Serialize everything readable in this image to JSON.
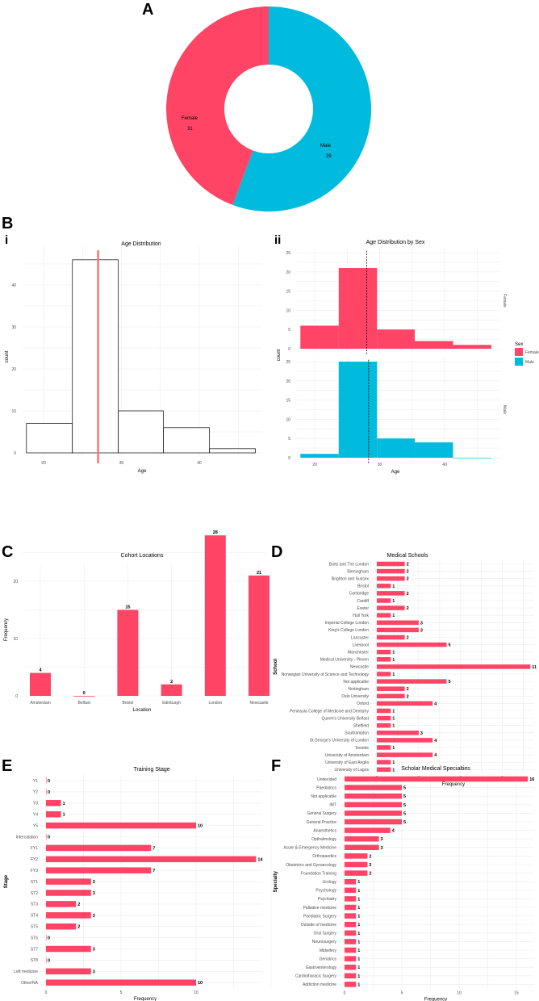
{
  "colors": {
    "female": "#FF4466",
    "male": "#00BBDD",
    "bar": "#FF4466",
    "mean_line": "#F8766D"
  },
  "panels": {
    "A": "A",
    "B": "B",
    "Bi": "i",
    "Bii": "ii",
    "C": "C",
    "D": "D",
    "E": "E",
    "F": "F"
  },
  "chart_data": [
    {
      "id": "sex",
      "type": "pie",
      "title": "Sex",
      "categories": [
        "Female",
        "Male"
      ],
      "values": [
        31,
        39
      ],
      "donut": true
    },
    {
      "id": "age",
      "type": "bar",
      "subtype": "histogram",
      "title": "Age Distribution",
      "xlabel": "Age",
      "ylabel": "count",
      "bin_edges": [
        17.8,
        23.7,
        29.6,
        35.4,
        41.3,
        47.2
      ],
      "values": [
        7,
        46,
        10,
        6,
        1
      ],
      "mean": 27,
      "xticks": [
        20,
        30,
        40
      ],
      "yticks": [
        0,
        10,
        20,
        30,
        40
      ],
      "ylim": [
        0,
        46
      ]
    },
    {
      "id": "age_sex",
      "type": "bar",
      "subtype": "faceted histogram",
      "title": "Age Distribution by Sex",
      "xlabel": "Age",
      "ylabel": "count",
      "legend_title": "Sex",
      "legend": "right",
      "bin_edges": [
        17.8,
        23.7,
        29.6,
        35.4,
        41.3,
        47.2
      ],
      "series": [
        {
          "name": "Female",
          "values": [
            6,
            21,
            5,
            2,
            1
          ],
          "mean": 28
        },
        {
          "name": "Male",
          "values": [
            1,
            25,
            5,
            4,
            0
          ],
          "mean": 28.3
        }
      ],
      "xticks": [
        20,
        30,
        40
      ],
      "yticks": [
        0,
        5,
        10,
        15,
        20,
        25
      ],
      "ylim": [
        0,
        25
      ]
    },
    {
      "id": "locations",
      "type": "bar",
      "title": "Cohort Locations",
      "xlabel": "Location",
      "ylabel": "Frequency",
      "categories": [
        "Amsterdam",
        "Belfast",
        "Bristol",
        "Edinburgh",
        "London",
        "Newcastle"
      ],
      "values": [
        4,
        0,
        15,
        2,
        28,
        21
      ],
      "yticks": [
        0,
        10,
        20
      ],
      "ylim": [
        0,
        28
      ]
    },
    {
      "id": "schools",
      "type": "bar",
      "orientation": "horizontal",
      "title": "Medical Schools",
      "xlabel": "Frequency",
      "ylabel": "School",
      "categories": [
        "Barts and The London",
        "Birmingham",
        "Brighton and Sussex",
        "Bristol",
        "Cambridge",
        "Cardiff",
        "Exeter",
        "Hull York",
        "Imperial College London",
        "King's College London",
        "Lancaster",
        "Liverpool",
        "Manchester",
        "Medical University - Pleven",
        "Newcastle",
        "Norwegian University of Science and Technology",
        "Not applicable",
        "Nottingham",
        "Oslo University",
        "Oxford",
        "Peninsula College of Medicine and Dentistry",
        "Queen's University Belfast",
        "Sheffield",
        "Southampton",
        "St George's University of London",
        "Teeside",
        "University of Amsterdam",
        "University of East Anglia",
        "University of Lagos"
      ],
      "values": [
        2,
        2,
        2,
        1,
        2,
        1,
        2,
        1,
        3,
        3,
        2,
        5,
        1,
        1,
        11,
        1,
        5,
        2,
        2,
        4,
        1,
        1,
        1,
        3,
        4,
        1,
        4,
        1,
        1
      ],
      "xticks": [
        0,
        3,
        6,
        9
      ],
      "xlim": [
        0,
        11
      ]
    },
    {
      "id": "stage",
      "type": "bar",
      "orientation": "horizontal",
      "title": "Training Stage",
      "xlabel": "Frequency",
      "ylabel": "Stage",
      "categories": [
        "Y1",
        "Y2",
        "Y3",
        "Y4",
        "Y5",
        "Intercalation",
        "FY1",
        "FY2",
        "FY3",
        "ST1",
        "ST2",
        "ST3",
        "ST4",
        "ST5",
        "ST6",
        "ST7",
        "ST8",
        "Left medicine",
        "Other/NA"
      ],
      "values": [
        0,
        0,
        1,
        1,
        10,
        0,
        7,
        14,
        7,
        3,
        3,
        2,
        3,
        2,
        0,
        3,
        0,
        3,
        10
      ],
      "xticks": [
        0,
        5,
        10
      ],
      "xlim": [
        0,
        14
      ]
    },
    {
      "id": "specialty",
      "type": "bar",
      "orientation": "horizontal",
      "title": "Scholar Medical Specialties",
      "xlabel": "Frequency",
      "ylabel": "Specialty",
      "categories": [
        "Undecided",
        "Paediatrics",
        "Not applicable",
        "IMT",
        "General Surgery",
        "General Practice",
        "Anaesthetics",
        "Opthalmology",
        "Acute & Emergency Medicine",
        "Orthopaedics",
        "Obstetrics and Gynaecology",
        "Foundation Training",
        "Urology",
        "Psychology",
        "Psychiatry",
        "Palliative medicine",
        "Paediatric Surgery",
        "Outside of medicine",
        "Oral Surgery",
        "Neurosurgery",
        "Midwifery",
        "Geriatrics",
        "Gastroenterology",
        "Cardiothoracic Surgery",
        "Addiction medicine"
      ],
      "values": [
        16,
        5,
        5,
        5,
        5,
        5,
        4,
        3,
        3,
        2,
        2,
        2,
        1,
        1,
        1,
        1,
        1,
        1,
        1,
        1,
        1,
        1,
        1,
        1,
        1
      ],
      "xticks": [
        0,
        5,
        10,
        15
      ],
      "xlim": [
        0,
        16
      ]
    }
  ]
}
